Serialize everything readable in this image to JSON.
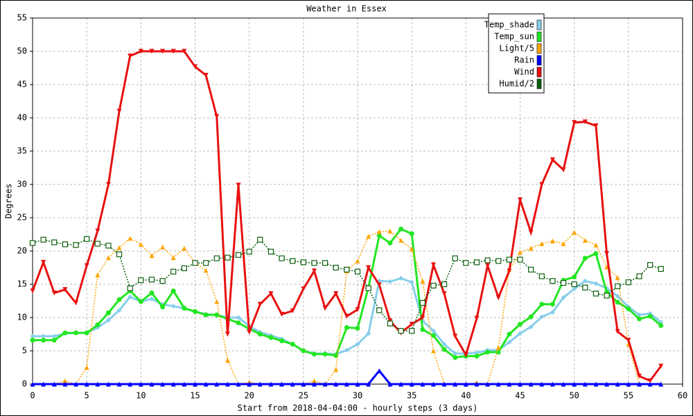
{
  "chart_data": {
    "type": "line",
    "title": "Weather in Essex",
    "xlabel": "Start from 2018-04-04:00 - hourly steps (3 days)",
    "ylabel": "Degrees",
    "x": [
      0,
      1,
      2,
      3,
      4,
      5,
      6,
      7,
      8,
      9,
      10,
      11,
      12,
      13,
      14,
      15,
      16,
      17,
      18,
      19,
      20,
      21,
      22,
      23,
      24,
      25,
      26,
      27,
      28,
      29,
      30,
      31,
      32,
      33,
      34,
      35,
      36,
      37,
      38,
      39,
      40,
      41,
      42,
      43,
      44,
      45,
      46,
      47,
      48,
      49,
      50,
      51,
      52,
      53,
      54,
      55,
      56,
      57,
      58
    ],
    "xlim": [
      0,
      60
    ],
    "xticks": [
      0,
      5,
      10,
      15,
      20,
      25,
      30,
      35,
      40,
      45,
      50,
      55,
      60
    ],
    "ylim": [
      0,
      55
    ],
    "yticks": [
      0,
      5,
      10,
      15,
      20,
      25,
      30,
      35,
      40,
      45,
      50,
      55
    ],
    "grid": true,
    "legend": "upper right",
    "series": [
      {
        "name": "Temp_shade",
        "color": "#87ceeb",
        "marker": "diamond",
        "dash": false,
        "values": [
          7.2,
          7.2,
          7.2,
          7.6,
          7.7,
          7.7,
          8.5,
          9.6,
          11.1,
          13.1,
          12.4,
          12.8,
          12.0,
          11.7,
          11.4,
          10.9,
          10.5,
          10.4,
          10.0,
          10.0,
          8.7,
          7.8,
          7.3,
          6.8,
          6.0,
          5.0,
          4.6,
          4.6,
          4.5,
          5.1,
          6.0,
          7.6,
          15.5,
          15.4,
          15.9,
          15.3,
          9.5,
          8.0,
          6.0,
          4.6,
          4.6,
          4.7,
          5.1,
          5.1,
          6.3,
          7.6,
          8.6,
          10.1,
          10.8,
          13.0,
          14.3,
          15.5,
          15.1,
          14.4,
          13.2,
          11.6,
          10.4,
          10.6,
          9.3
        ]
      },
      {
        "name": "Temp_sun",
        "color": "#22e622",
        "marker": "circle",
        "dash": false,
        "values": [
          6.6,
          6.6,
          6.6,
          7.7,
          7.7,
          7.7,
          8.9,
          10.7,
          12.7,
          14.0,
          12.4,
          13.7,
          11.6,
          14.0,
          11.4,
          10.9,
          10.4,
          10.4,
          9.8,
          9.2,
          8.3,
          7.5,
          7.0,
          6.5,
          6.0,
          5.0,
          4.5,
          4.5,
          4.3,
          8.5,
          8.4,
          14.5,
          22.3,
          21.2,
          23.3,
          22.6,
          8.2,
          7.3,
          5.2,
          4.0,
          4.2,
          4.2,
          4.8,
          4.8,
          7.5,
          9.0,
          10.1,
          12.0,
          12.0,
          15.6,
          16.1,
          18.9,
          19.6,
          13.8,
          12.3,
          11.3,
          9.8,
          10.2,
          8.8
        ]
      },
      {
        "name": "Light/5",
        "color": "#ffa500",
        "marker": "triangle-up",
        "dash": true,
        "values": [
          0,
          0,
          0,
          0.5,
          0,
          2.5,
          16.4,
          19,
          20.5,
          21.9,
          21,
          19.3,
          20.6,
          19,
          20.4,
          18.2,
          17.1,
          12.4,
          3.6,
          0,
          0.3,
          0,
          0,
          0,
          0,
          0,
          0.5,
          0,
          2.2,
          17,
          18.5,
          22.2,
          22.9,
          23,
          21.6,
          20.3,
          15.5,
          5,
          0,
          0,
          0,
          0.2,
          0,
          5.5,
          17.2,
          19.8,
          20.4,
          21.1,
          21.5,
          21.1,
          22.8,
          21.6,
          20.9,
          17.6,
          16,
          6,
          0,
          0,
          0
        ]
      },
      {
        "name": "Rain",
        "color": "#0000ff",
        "marker": "triangle-up",
        "dash": false,
        "values": [
          0,
          0,
          0,
          0,
          0,
          0,
          0,
          0,
          0,
          0,
          0,
          0,
          0,
          0,
          0,
          0,
          0,
          0,
          0,
          0,
          0,
          0,
          0,
          0,
          0,
          0,
          0,
          0,
          0,
          0,
          0,
          0,
          2,
          0,
          0,
          0,
          0,
          0,
          0,
          0,
          0,
          0,
          0,
          0,
          0,
          0,
          0,
          0,
          0,
          0,
          0,
          0,
          0,
          0,
          0,
          0,
          0,
          0,
          0
        ]
      },
      {
        "name": "Wind",
        "color": "#e81010",
        "marker": "triangle-down",
        "dash": false,
        "values": [
          14,
          18.3,
          13.7,
          14.2,
          12.2,
          17.8,
          23,
          30,
          41,
          49.3,
          50,
          50,
          50,
          50,
          50,
          47.7,
          46.4,
          40.2,
          7.5,
          29.9,
          7.8,
          12,
          13.6,
          10.5,
          11,
          14.3,
          17,
          11.4,
          13.6,
          10.2,
          11.2,
          17.5,
          14.9,
          9.5,
          7.7,
          9,
          10,
          17.9,
          13.6,
          7.2,
          4.4,
          9.9,
          17.8,
          13,
          17,
          27.7,
          22.8,
          30,
          33.7,
          32.2,
          39.3,
          39.4,
          38.8,
          19.6,
          7.9,
          6.6,
          1.2,
          0.5,
          2.7
        ]
      },
      {
        "name": "Humid/2",
        "color": "#0b5e0b",
        "marker": "square",
        "dash": true,
        "values": [
          21.2,
          21.7,
          21.3,
          21,
          20.9,
          21.8,
          21.1,
          20.8,
          19.5,
          14.4,
          15.6,
          15.7,
          15.5,
          16.9,
          17.4,
          18.2,
          18.2,
          18.9,
          19,
          19.4,
          19.9,
          21.7,
          19.9,
          18.9,
          18.5,
          18.3,
          18.2,
          18.2,
          17.5,
          17.2,
          16.9,
          14.4,
          11.1,
          9.1,
          8,
          8,
          12.2,
          14.8,
          15,
          18.9,
          18.2,
          18.3,
          18.6,
          18.5,
          18.7,
          18.7,
          17.2,
          16.2,
          15.5,
          15.2,
          15,
          14.5,
          13.6,
          13.3,
          14.7,
          15.3,
          16.2,
          17.9,
          17.3
        ]
      }
    ]
  }
}
